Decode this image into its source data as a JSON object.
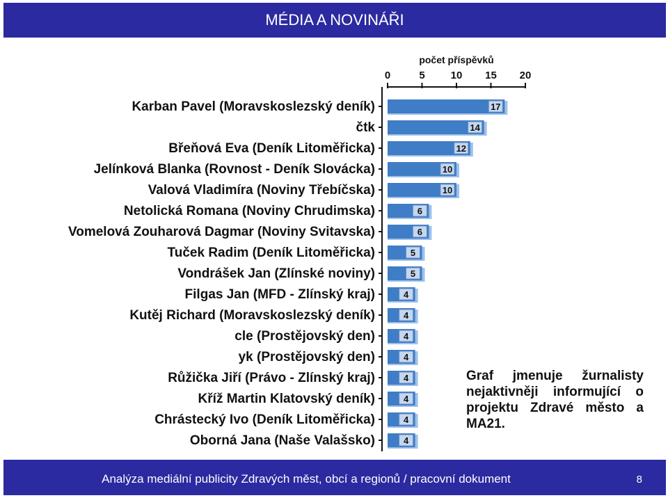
{
  "header": {
    "title": "MÉDIA A NOVINÁŘI"
  },
  "caption": {
    "text": "Graf jmenuje žurnalisty nejaktivněji informující o projektu Zdravé město a MA21."
  },
  "footer": {
    "text": "Analýza mediální publicity Zdravých měst, obcí a regionů / pracovní dokument",
    "page": "8"
  },
  "colors": {
    "bar": "#3f7dc6",
    "bar_shadow": "#9cc1ea",
    "label_box": "#c5d7ef",
    "header_bg": "#2b2aa0"
  },
  "chart_data": {
    "type": "bar",
    "orientation": "horizontal",
    "title": "počet příspěvků",
    "xlim": [
      0,
      20
    ],
    "xticks": [
      0,
      5,
      10,
      15,
      20
    ],
    "axis_position": "top",
    "categories": [
      "Karban Pavel (Moravskoslezský deník)",
      "čtk",
      "Břeňová Eva (Deník Litoměřicka)",
      "Jelínková Blanka (Rovnost - Deník Slovácka)",
      "Valová Vladimíra (Noviny Třebíčska)",
      "Netolická Romana (Noviny Chrudimska)",
      "Vomelová Zouharová Dagmar (Noviny Svitavska)",
      "Tuček Radim (Deník Litoměřicka)",
      "Vondrášek Jan (Zlínské noviny)",
      "Filgas Jan (MFD - Zlínský kraj)",
      "Kutěj Richard (Moravskoslezský deník)",
      "cle (Prostějovský den)",
      "yk (Prostějovský den)",
      "Růžička Jiří (Právo - Zlínský kraj)",
      "Kříž Martin Klatovský deník)",
      "Chrástecký Ivo (Deník Litoměřicka)",
      "Oborná Jana (Naše Valašsko)"
    ],
    "values": [
      17,
      14,
      12,
      10,
      10,
      6,
      6,
      5,
      5,
      4,
      4,
      4,
      4,
      4,
      4,
      4,
      4
    ]
  }
}
